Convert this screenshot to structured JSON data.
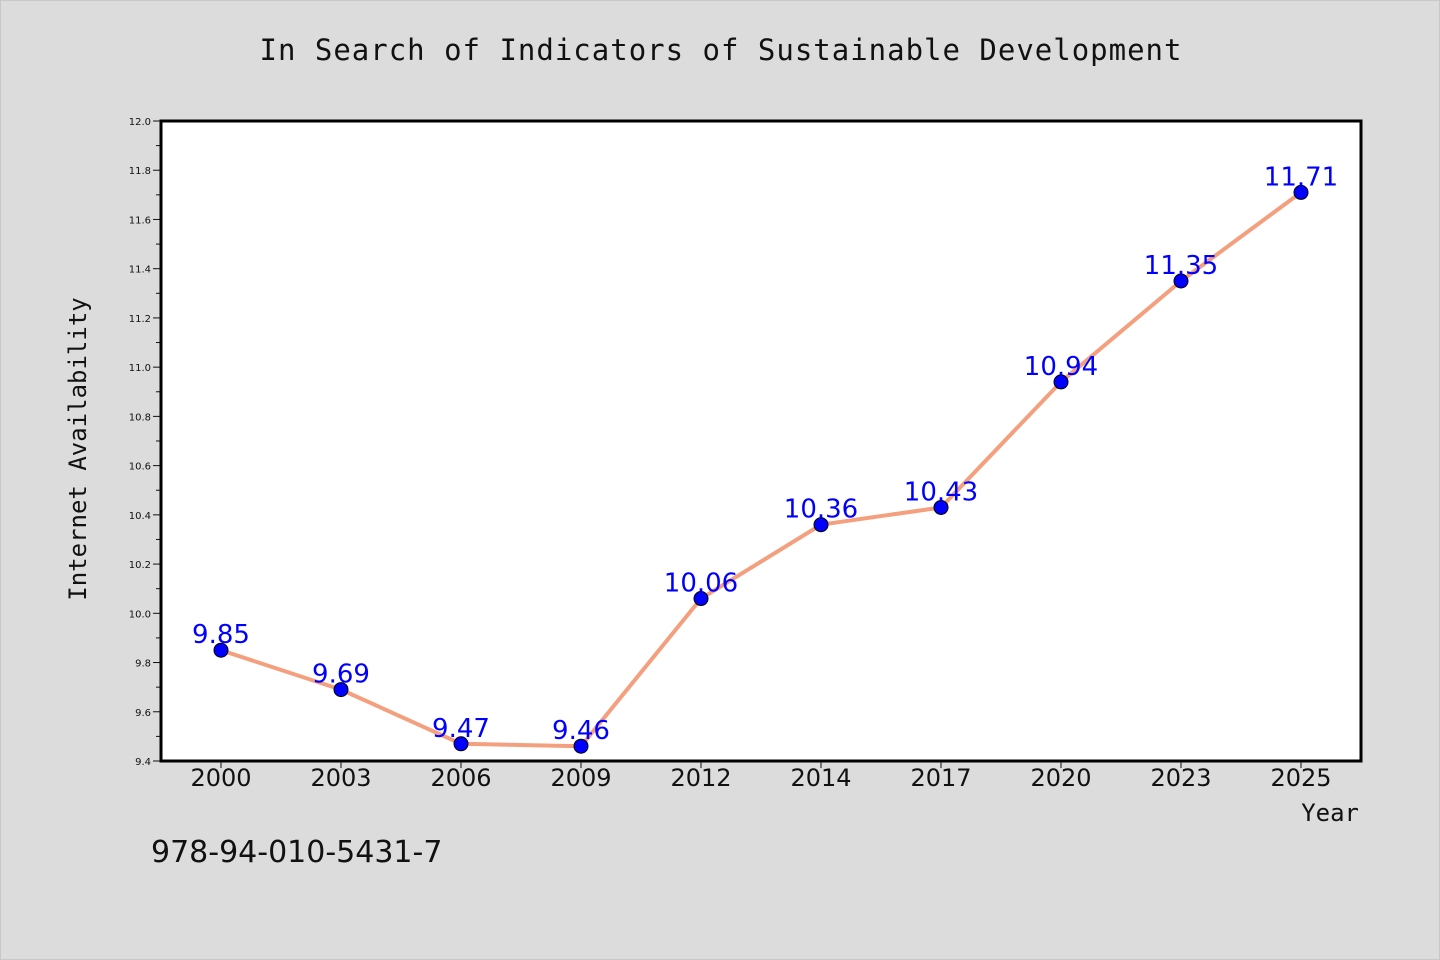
{
  "page": {
    "background": "#dcdcdc",
    "isbn": "978-94-010-5431-7"
  },
  "chart_data": {
    "type": "line",
    "title": "In Search of Indicators of Sustainable Development",
    "xlabel": "Year",
    "ylabel": "Internet Availability",
    "categories": [
      "2000",
      "2003",
      "2006",
      "2009",
      "2012",
      "2014",
      "2017",
      "2020",
      "2023",
      "2025"
    ],
    "series": [
      {
        "values": [
          9.85,
          9.69,
          9.47,
          9.46,
          10.06,
          10.36,
          10.43,
          10.94,
          11.35,
          11.71
        ],
        "line_color": "#f4a07e",
        "marker_color": "#0000ff"
      }
    ],
    "data_labels": [
      "9.85",
      "9.69",
      "9.47",
      "9.46",
      "10.06",
      "10.36",
      "10.43",
      "10.94",
      "11.35",
      "11.71"
    ],
    "ylim": [
      9.4,
      12.0
    ],
    "yticks": [
      "9.4",
      "9.6",
      "9.8",
      "10.0",
      "10.2",
      "10.4",
      "10.6",
      "10.8",
      "11.0",
      "11.2",
      "11.4",
      "11.6",
      "11.8",
      "12.0"
    ],
    "grid": false,
    "legend": "none",
    "data_label_color": "#0000ff"
  }
}
